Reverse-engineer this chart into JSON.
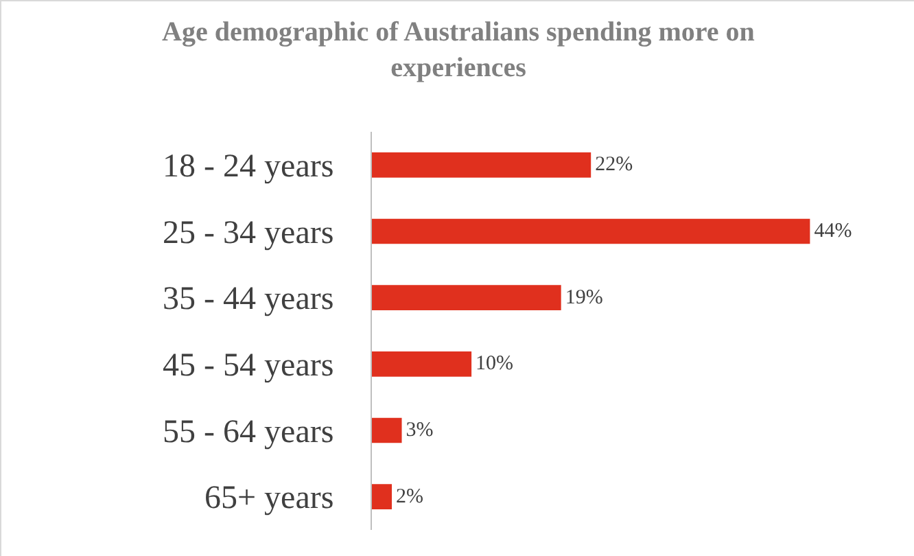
{
  "chart_data": {
    "type": "bar",
    "orientation": "horizontal",
    "title": "Age demographic of Australians spending more on experiences",
    "categories": [
      "18 - 24 years",
      "25 - 34 years",
      "35 - 44 years",
      "45 - 54 years",
      "55 - 64 years",
      "65+ years"
    ],
    "values": [
      22,
      44,
      19,
      10,
      3,
      2
    ],
    "value_labels": [
      "22%",
      "44%",
      "19%",
      "10%",
      "3%",
      "2%"
    ],
    "color": "#e0301e",
    "tick_labels": "y"
  }
}
